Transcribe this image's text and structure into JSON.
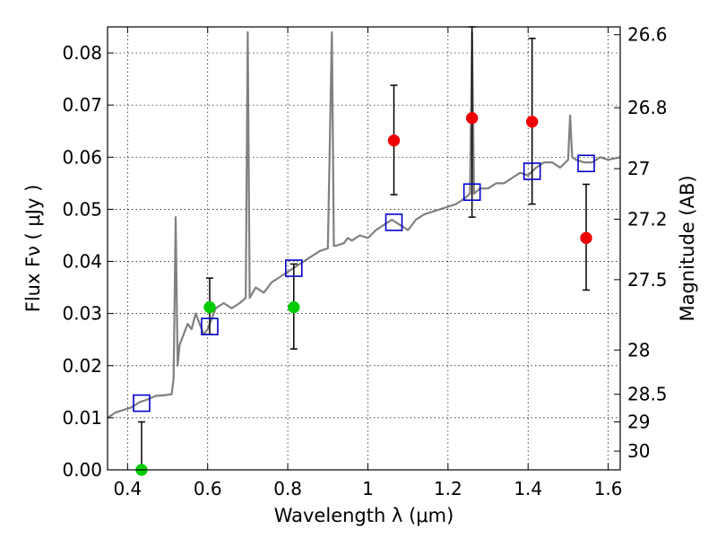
{
  "chart_data": {
    "type": "scatter",
    "xlabel": "Wavelength  λ (μm)",
    "ylabel": "Flux  Fν ( μJy )",
    "ylabel_right": "Magnitude (AB)",
    "xlim": [
      0.35,
      1.63
    ],
    "ylim": [
      0.0,
      0.085
    ],
    "grid": true,
    "x_ticks": [
      0.4,
      0.6,
      0.8,
      1.0,
      1.2,
      1.4,
      1.6
    ],
    "x_tick_labels": [
      "0.4",
      "0.6",
      "0.8",
      "1",
      "1.2",
      "1.4",
      "1.6"
    ],
    "y_ticks": [
      0.0,
      0.01,
      0.02,
      0.03,
      0.04,
      0.05,
      0.06,
      0.07,
      0.08
    ],
    "y_tick_labels": [
      "0.00",
      "0.01",
      "0.02",
      "0.03",
      "0.04",
      "0.05",
      "0.06",
      "0.07",
      "0.08"
    ],
    "right_axis_ticks": [
      {
        "label": "26.6",
        "flux": 0.0835
      },
      {
        "label": "26.8",
        "flux": 0.0695
      },
      {
        "label": "27",
        "flux": 0.0578
      },
      {
        "label": "27.2",
        "flux": 0.0481
      },
      {
        "label": "27.5",
        "flux": 0.0365
      },
      {
        "label": "28",
        "flux": 0.023
      },
      {
        "label": "28.5",
        "flux": 0.0145
      },
      {
        "label": "29",
        "flux": 0.0092
      },
      {
        "label": "30",
        "flux": 0.0036
      }
    ],
    "series": [
      {
        "kind": "line",
        "color": "#808080",
        "x": [
          0.35,
          0.37,
          0.39,
          0.41,
          0.43,
          0.45,
          0.47,
          0.49,
          0.51,
          0.515,
          0.52,
          0.525,
          0.53,
          0.54,
          0.55,
          0.56,
          0.57,
          0.58,
          0.59,
          0.6,
          0.62,
          0.64,
          0.66,
          0.68,
          0.695,
          0.7,
          0.705,
          0.72,
          0.74,
          0.76,
          0.78,
          0.8,
          0.82,
          0.84,
          0.86,
          0.88,
          0.9,
          0.91,
          0.915,
          0.92,
          0.94,
          0.95,
          0.96,
          0.98,
          1.0,
          1.02,
          1.04,
          1.06,
          1.08,
          1.1,
          1.12,
          1.14,
          1.16,
          1.18,
          1.2,
          1.22,
          1.24,
          1.255,
          1.26,
          1.265,
          1.28,
          1.3,
          1.32,
          1.34,
          1.36,
          1.38,
          1.4,
          1.42,
          1.44,
          1.46,
          1.48,
          1.5,
          1.505,
          1.51,
          1.52,
          1.54,
          1.56,
          1.58,
          1.6,
          1.63
        ],
        "y": [
          0.01,
          0.011,
          0.0115,
          0.012,
          0.013,
          0.0135,
          0.0142,
          0.0143,
          0.0145,
          0.0175,
          0.0485,
          0.02,
          0.024,
          0.026,
          0.028,
          0.027,
          0.03,
          0.028,
          0.026,
          0.027,
          0.031,
          0.032,
          0.031,
          0.032,
          0.033,
          0.084,
          0.033,
          0.035,
          0.034,
          0.036,
          0.037,
          0.038,
          0.039,
          0.04,
          0.041,
          0.042,
          0.0425,
          0.084,
          0.043,
          0.043,
          0.0435,
          0.0445,
          0.044,
          0.045,
          0.0445,
          0.046,
          0.047,
          0.048,
          0.047,
          0.046,
          0.048,
          0.049,
          0.0495,
          0.05,
          0.0505,
          0.051,
          0.052,
          0.053,
          0.084,
          0.053,
          0.054,
          0.054,
          0.055,
          0.055,
          0.056,
          0.057,
          0.0565,
          0.058,
          0.059,
          0.059,
          0.058,
          0.0595,
          0.068,
          0.06,
          0.0595,
          0.059,
          0.059,
          0.06,
          0.0595,
          0.06
        ]
      },
      {
        "kind": "points",
        "color": "#ee0000",
        "x": [
          1.065,
          1.26,
          1.41,
          1.545
        ],
        "y": [
          0.0632,
          0.0675,
          0.0668,
          0.0445
        ],
        "yerr_low": [
          0.0528,
          0.0485,
          0.051,
          0.0345
        ],
        "yerr_high": [
          0.0738,
          0.085,
          0.0828,
          0.0548
        ]
      },
      {
        "kind": "points",
        "color": "#00cc00",
        "x": [
          0.435,
          0.605,
          0.815
        ],
        "y": [
          0.0,
          0.0312,
          0.0312
        ],
        "yerr_low": [
          0.0,
          0.026,
          0.0232
        ],
        "yerr_high": [
          0.0092,
          0.0368,
          0.0395
        ]
      },
      {
        "kind": "model-squares",
        "color": "#0000cc",
        "x": [
          0.435,
          0.605,
          0.815,
          1.065,
          1.26,
          1.41,
          1.545
        ],
        "y": [
          0.0128,
          0.0275,
          0.0387,
          0.0475,
          0.0533,
          0.0573,
          0.0588
        ]
      }
    ]
  }
}
